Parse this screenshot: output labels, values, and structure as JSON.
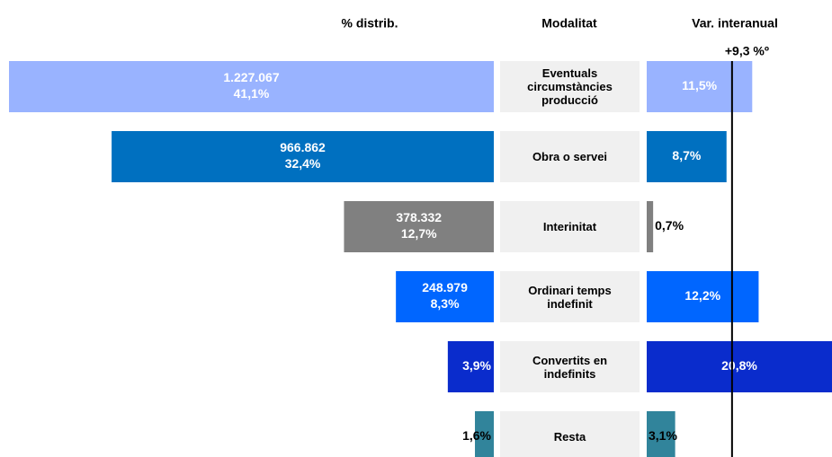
{
  "chart_data": {
    "type": "butterfly-bar",
    "column_titles": [
      "% distrib.",
      "Modalitat",
      "Var. interanual"
    ],
    "categories": [
      "Eventuals circumstàncies producció",
      "Obra o servei",
      "Interinitat",
      "Ordinari temps indefinit",
      "Convertits en indefinits",
      "Resta"
    ],
    "colors": [
      "#99b3ff",
      "#0070c0",
      "#808080",
      "#0066ff",
      "#0a2ccc",
      "#31849b"
    ],
    "contracts": {
      "values": [
        1227067,
        966862,
        378332,
        248979,
        null,
        null
      ],
      "value_labels": [
        "1.227.067",
        "966.862",
        "378.332",
        "248.979",
        null,
        null
      ]
    },
    "share": {
      "values": [
        41.1,
        32.4,
        12.7,
        8.3,
        3.9,
        1.6
      ],
      "value_labels": [
        "41,1%",
        "32,4%",
        "12,7%",
        "8,3%",
        "3,9%",
        "1,6%"
      ],
      "xlim": [
        0,
        41.1
      ]
    },
    "variation": {
      "values": [
        11.5,
        8.7,
        0.7,
        12.2,
        20.8,
        3.1
      ],
      "value_labels": [
        "11,5%",
        "8,7%",
        "0,7%",
        "12,2%",
        "20,8%",
        "3,1%"
      ],
      "xlim": [
        0,
        20
      ]
    },
    "reference": {
      "value": 9.3,
      "label": "+9,3 %º"
    }
  }
}
